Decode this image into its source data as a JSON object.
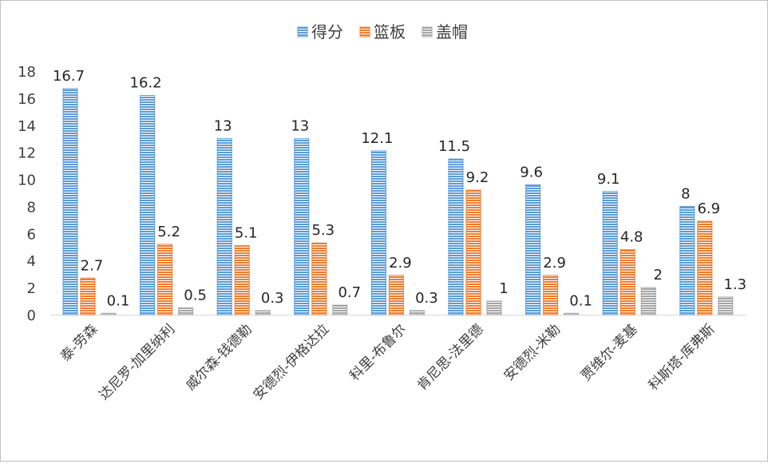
{
  "chart_data": {
    "type": "bar",
    "title": "",
    "xlabel": "",
    "ylabel": "",
    "ylim": [
      0,
      18
    ],
    "yticks": [
      0,
      2,
      4,
      6,
      8,
      10,
      12,
      14,
      16,
      18
    ],
    "grid": false,
    "legend": "top-center",
    "categories": [
      "泰-劳森",
      "达尼罗-加里纳利",
      "威尔森-钱德勒",
      "安德烈-伊格达拉",
      "科里-布鲁尔",
      "肯尼思-法里德",
      "安德烈-米勒",
      "贾维尔-麦基",
      "科斯塔-库弗斯"
    ],
    "series": [
      {
        "name": "得分",
        "color": "#5b9bd5",
        "values": [
          16.7,
          16.2,
          13,
          13,
          12.1,
          11.5,
          9.6,
          9.1,
          8
        ]
      },
      {
        "name": "篮板",
        "color": "#ed7d31",
        "values": [
          2.7,
          5.2,
          5.1,
          5.3,
          2.9,
          9.2,
          2.9,
          4.8,
          6.9
        ]
      },
      {
        "name": "盖帽",
        "color": "#a5a5a5",
        "values": [
          0.1,
          0.5,
          0.3,
          0.7,
          0.3,
          1,
          0.1,
          2,
          1.3
        ]
      }
    ]
  }
}
